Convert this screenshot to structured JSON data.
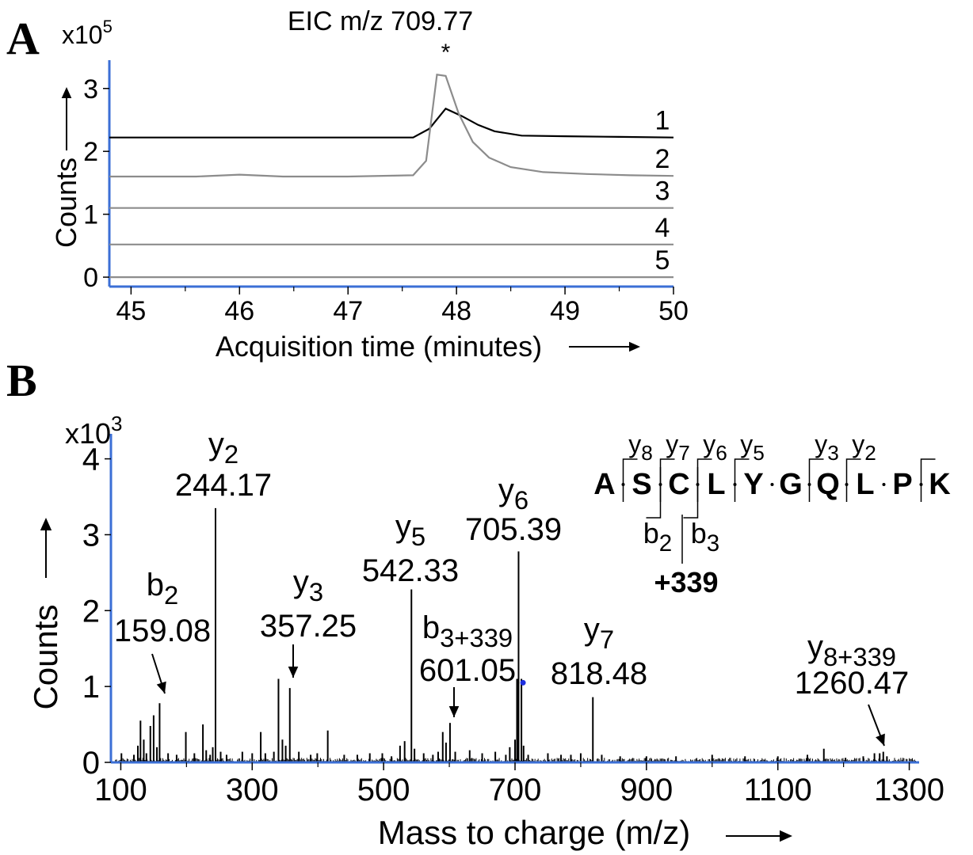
{
  "panels": {
    "a": {
      "letter": "A"
    },
    "b": {
      "letter": "B"
    }
  },
  "chart_data": [
    {
      "type": "line",
      "title": "EIC m/z 709.77",
      "peak_marker": "*",
      "xlabel": "Acquisition time (minutes)",
      "ylabel": "Counts",
      "y_multiplier": "x10",
      "y_multiplier_exp": "5",
      "xlim": [
        44.8,
        50.0
      ],
      "ylim": [
        -0.15,
        3.45
      ],
      "x_ticks": [
        45,
        46,
        47,
        48,
        49,
        50
      ],
      "x_tick_labels": [
        "45",
        "46",
        "47",
        "48",
        "49",
        "50"
      ],
      "y_ticks": [
        0,
        1,
        2,
        3
      ],
      "y_tick_labels": [
        "0",
        "1",
        "2",
        "3"
      ],
      "axis_color": "#3b6fd6",
      "series": [
        {
          "name": "1",
          "color": "#000000",
          "x": [
            44.8,
            47.6,
            47.75,
            47.9,
            48.05,
            48.2,
            48.35,
            48.6,
            49.0,
            49.5,
            50.0
          ],
          "y": [
            2.22,
            2.22,
            2.36,
            2.68,
            2.56,
            2.42,
            2.32,
            2.25,
            2.24,
            2.23,
            2.22
          ]
        },
        {
          "name": "2",
          "color": "#8c8c8c",
          "x": [
            44.8,
            45.6,
            46.0,
            46.4,
            47.0,
            47.6,
            47.72,
            47.82,
            47.9,
            48.02,
            48.15,
            48.3,
            48.5,
            48.8,
            49.2,
            49.6,
            50.0
          ],
          "y": [
            1.6,
            1.6,
            1.63,
            1.6,
            1.6,
            1.62,
            1.85,
            3.22,
            3.2,
            2.6,
            2.15,
            1.9,
            1.75,
            1.67,
            1.64,
            1.62,
            1.61
          ]
        },
        {
          "name": "3",
          "color": "#8c8c8c",
          "x": [
            44.8,
            50.0
          ],
          "y": [
            1.1,
            1.1
          ]
        },
        {
          "name": "4",
          "color": "#8c8c8c",
          "x": [
            44.8,
            50.0
          ],
          "y": [
            0.52,
            0.52
          ]
        },
        {
          "name": "5",
          "color": "#8c8c8c",
          "x": [
            44.8,
            50.0
          ],
          "y": [
            0.0,
            0.0
          ]
        }
      ]
    },
    {
      "type": "bar",
      "xlabel": "Mass to charge (m/z)",
      "ylabel": "Counts",
      "y_multiplier": "x10",
      "y_multiplier_exp": "3",
      "xlim": [
        85,
        1315
      ],
      "ylim": [
        0,
        4.1
      ],
      "x_ticks": [
        100,
        300,
        500,
        700,
        900,
        1100,
        1300
      ],
      "x_tick_labels": [
        "100",
        "300",
        "500",
        "700",
        "900",
        "1100",
        "1300"
      ],
      "y_ticks": [
        0,
        1,
        2,
        3,
        4
      ],
      "y_tick_labels": [
        "0",
        "1",
        "2",
        "3",
        "4"
      ],
      "axis_color": "#3b6fd6",
      "peaks": {
        "mz": [
          101,
          120,
          126,
          130,
          135,
          139,
          145,
          150,
          155,
          159.08,
          172,
          185,
          199,
          212,
          225,
          230,
          236,
          240,
          244.17,
          252,
          261,
          285,
          300,
          313,
          320,
          333,
          340,
          346,
          351,
          357.25,
          371,
          389,
          399,
          415,
          440,
          460,
          479,
          498,
          512,
          525,
          532,
          542.33,
          547,
          561,
          575,
          583,
          590,
          595,
          601.05,
          609,
          631,
          650,
          670,
          686,
          692,
          700,
          703,
          705.39,
          709.77,
          713,
          720,
          750,
          770,
          785,
          800,
          818.48,
          832,
          860,
          900,
          945,
          1000,
          1050,
          1100,
          1145,
          1170,
          1203,
          1230,
          1247,
          1255,
          1260.47,
          1266
        ],
        "intensity": [
          0.12,
          0.1,
          0.22,
          0.55,
          0.3,
          0.12,
          0.48,
          0.62,
          0.2,
          0.78,
          0.12,
          0.1,
          0.4,
          0.12,
          0.5,
          0.16,
          0.1,
          0.2,
          3.35,
          0.14,
          0.1,
          0.14,
          0.12,
          0.4,
          0.12,
          0.14,
          1.1,
          0.3,
          0.22,
          0.98,
          0.14,
          0.1,
          0.12,
          0.42,
          0.1,
          0.1,
          0.12,
          0.12,
          0.08,
          0.22,
          0.28,
          2.28,
          0.18,
          0.12,
          0.1,
          0.14,
          0.4,
          0.26,
          0.52,
          0.14,
          0.16,
          0.12,
          0.14,
          0.1,
          0.2,
          0.3,
          1.1,
          2.78,
          1.1,
          0.22,
          0.1,
          0.12,
          0.1,
          0.1,
          0.12,
          0.86,
          0.1,
          0.08,
          0.08,
          0.08,
          0.1,
          0.08,
          0.08,
          0.1,
          0.18,
          0.06,
          0.08,
          0.12,
          0.12,
          0.14,
          0.08
        ]
      },
      "annotations": [
        {
          "ion": "b",
          "sub": "2",
          "mz_label": "159.08",
          "mz": 159.08,
          "arrow": true
        },
        {
          "ion": "y",
          "sub": "2",
          "mz_label": "244.17",
          "mz": 244.17,
          "arrow": false
        },
        {
          "ion": "y",
          "sub": "3",
          "mz_label": "357.25",
          "mz": 357.25,
          "arrow": true
        },
        {
          "ion": "y",
          "sub": "5",
          "mz_label": "542.33",
          "mz": 542.33,
          "arrow": false
        },
        {
          "ion": "b",
          "sub": "3+339",
          "mz_label": "601.05",
          "mz": 601.05,
          "arrow": true
        },
        {
          "ion": "y",
          "sub": "6",
          "mz_label": "705.39",
          "mz": 705.39,
          "arrow": false
        },
        {
          "ion": "y",
          "sub": "7",
          "mz_label": "818.48",
          "mz": 818.48,
          "arrow": false
        },
        {
          "ion": "y",
          "sub": "8+339",
          "mz_label": "1260.47",
          "mz": 1260.47,
          "arrow": true
        }
      ],
      "precursor_marker": {
        "mz": 709.77,
        "color": "#1f2fe0"
      }
    }
  ],
  "sequence": {
    "residues": [
      "A",
      "S",
      "C",
      "L",
      "Y",
      "G",
      "Q",
      "L",
      "P",
      "K"
    ],
    "y_ions": [
      {
        "ion": "y",
        "sub": "8"
      },
      {
        "ion": "y",
        "sub": "7"
      },
      {
        "ion": "y",
        "sub": "6"
      },
      {
        "ion": "y",
        "sub": "5"
      },
      {
        "ion": "y",
        "sub": "3"
      },
      {
        "ion": "y",
        "sub": "2"
      }
    ],
    "b_ions": [
      {
        "ion": "b",
        "sub": "2"
      },
      {
        "ion": "b",
        "sub": "3"
      }
    ],
    "modification": "+339"
  }
}
